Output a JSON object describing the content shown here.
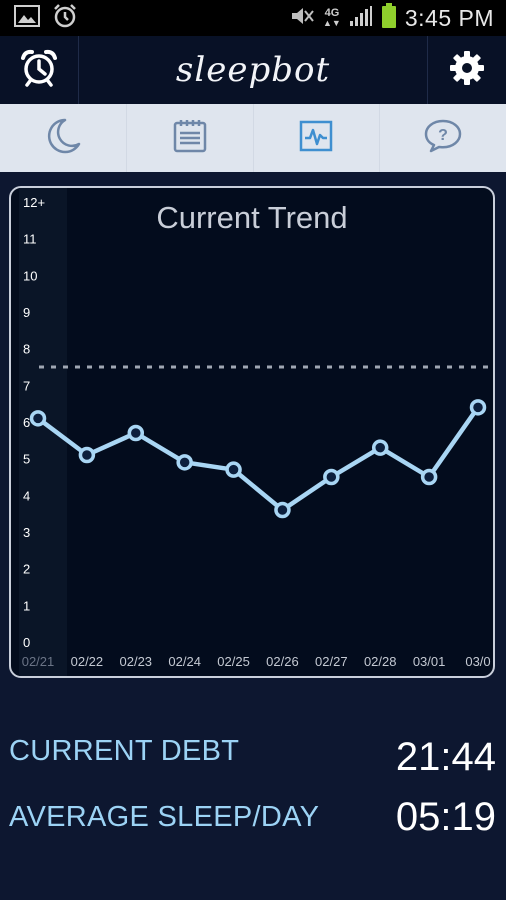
{
  "status_bar": {
    "time": "3:45 PM",
    "network": "4G",
    "icons": [
      "picture-icon",
      "alarm-clock-icon",
      "mute-icon",
      "signal-icon",
      "battery-icon"
    ]
  },
  "header": {
    "brand": "sleepbot",
    "left_icon": "alarm-clock-icon",
    "right_icon": "gear-icon"
  },
  "tabs": [
    {
      "name": "sleep",
      "icon": "moon-icon",
      "active": false
    },
    {
      "name": "log",
      "icon": "notepad-icon",
      "active": false
    },
    {
      "name": "trend",
      "icon": "pulse-chart-icon",
      "active": true
    },
    {
      "name": "help",
      "icon": "question-bubble-icon",
      "active": false
    }
  ],
  "chart_data": {
    "type": "line",
    "title": "Current Trend",
    "categories": [
      "02/21",
      "02/22",
      "02/23",
      "02/24",
      "02/25",
      "02/26",
      "02/27",
      "02/28",
      "03/01",
      "03/0"
    ],
    "values": [
      6.1,
      5.1,
      5.7,
      4.9,
      4.7,
      3.6,
      4.5,
      5.3,
      4.5,
      6.4
    ],
    "y_ticks": [
      "0",
      "1",
      "2",
      "3",
      "4",
      "5",
      "6",
      "7",
      "8",
      "9",
      "10",
      "11",
      "12+"
    ],
    "ylim": [
      0,
      12
    ],
    "target_line": 7.5,
    "grid": false,
    "colors": {
      "line": "#a9d6f4",
      "target": "#a0a7b3",
      "highlight_band": "#0a1527"
    }
  },
  "stats": {
    "current_debt_label": "CURRENT DEBT",
    "current_debt_value": "21:44",
    "average_sleep_label": "AVERAGE SLEEP/DAY",
    "average_sleep_value": "05:19"
  }
}
